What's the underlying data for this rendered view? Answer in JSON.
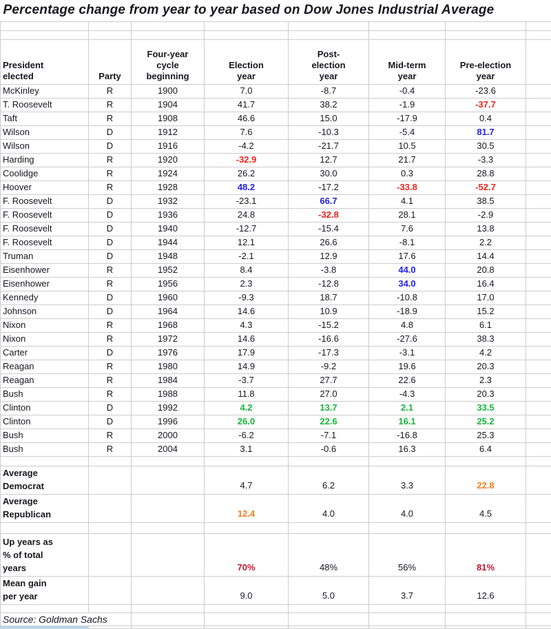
{
  "title": "Percentage change from year to year based on Dow Jones Industrial Average",
  "source": "Source: Goldman Sachs",
  "colors": {
    "text": "#17171f",
    "grid": "#cccccc",
    "red": "#f2241c",
    "blue": "#2222e6",
    "green": "#17b53a",
    "orange": "#f57e20",
    "darkred": "#bf1a2c",
    "selection": "#b8d8f2"
  },
  "table": {
    "headers": [
      "President\nelected",
      "Party",
      "Four-year\ncycle\nbeginning",
      "Election\nyear",
      "Post-\nelection\nyear",
      "Mid-term\nyear",
      "Pre-election\nyear"
    ],
    "rows": [
      {
        "name": "McKinley",
        "party": "R",
        "year": "1900",
        "values": [
          "7.0",
          "-8.7",
          "-0.4",
          "-23.6"
        ]
      },
      {
        "name": "T. Roosevelt",
        "party": "R",
        "year": "1904",
        "values": [
          "41.7",
          "38.2",
          "-1.9",
          "-37.7"
        ],
        "colors": [
          null,
          null,
          null,
          "red"
        ]
      },
      {
        "name": "Taft",
        "party": "R",
        "year": "1908",
        "values": [
          "46.6",
          "15.0",
          "-17.9",
          "0.4"
        ]
      },
      {
        "name": "Wilson",
        "party": "D",
        "year": "1912",
        "values": [
          "7.6",
          "-10.3",
          "-5.4",
          "81.7"
        ],
        "colors": [
          null,
          null,
          null,
          "blue"
        ]
      },
      {
        "name": "Wilson",
        "party": "D",
        "year": "1916",
        "values": [
          "-4.2",
          "-21.7",
          "10.5",
          "30.5"
        ]
      },
      {
        "name": "Harding",
        "party": "R",
        "year": "1920",
        "values": [
          "-32.9",
          "12.7",
          "21.7",
          "-3.3"
        ],
        "colors": [
          "red",
          null,
          null,
          null
        ]
      },
      {
        "name": "Coolidge",
        "party": "R",
        "year": "1924",
        "values": [
          "26.2",
          "30.0",
          "0.3",
          "28.8"
        ]
      },
      {
        "name": "Hoover",
        "party": "R",
        "year": "1928",
        "values": [
          "48.2",
          "-17.2",
          "-33.8",
          "-52.7"
        ],
        "colors": [
          "blue",
          null,
          "red",
          "red"
        ]
      },
      {
        "name": "F. Roosevelt",
        "party": "D",
        "year": "1932",
        "values": [
          "-23.1",
          "66.7",
          "4.1",
          "38.5"
        ],
        "colors": [
          null,
          "blue",
          null,
          null
        ]
      },
      {
        "name": "F. Roosevelt",
        "party": "D",
        "year": "1936",
        "values": [
          "24.8",
          "-32.8",
          "28.1",
          "-2.9"
        ],
        "colors": [
          null,
          "red",
          null,
          null
        ]
      },
      {
        "name": "F. Roosevelt",
        "party": "D",
        "year": "1940",
        "values": [
          "-12.7",
          "-15.4",
          "7.6",
          "13.8"
        ]
      },
      {
        "name": "F. Roosevelt",
        "party": "D",
        "year": "1944",
        "values": [
          "12.1",
          "26.6",
          "-8.1",
          "2.2"
        ]
      },
      {
        "name": "Truman",
        "party": "D",
        "year": "1948",
        "values": [
          "-2.1",
          "12.9",
          "17.6",
          "14.4"
        ]
      },
      {
        "name": "Eisenhower",
        "party": "R",
        "year": "1952",
        "values": [
          "8.4",
          "-3.8",
          "44.0",
          "20.8"
        ],
        "colors": [
          null,
          null,
          "blue",
          null
        ]
      },
      {
        "name": "Eisenhower",
        "party": "R",
        "year": "1956",
        "values": [
          "2.3",
          "-12.8",
          "34.0",
          "16.4"
        ],
        "colors": [
          null,
          null,
          "blue",
          null
        ]
      },
      {
        "name": "Kennedy",
        "party": "D",
        "year": "1960",
        "values": [
          "-9.3",
          "18.7",
          "-10.8",
          "17.0"
        ]
      },
      {
        "name": "Johnson",
        "party": "D",
        "year": "1964",
        "values": [
          "14.6",
          "10.9",
          "-18.9",
          "15.2"
        ]
      },
      {
        "name": "Nixon",
        "party": "R",
        "year": "1968",
        "values": [
          "4.3",
          "-15.2",
          "4.8",
          "6.1"
        ]
      },
      {
        "name": "Nixon",
        "party": "R",
        "year": "1972",
        "values": [
          "14.6",
          "-16.6",
          "-27.6",
          "38.3"
        ]
      },
      {
        "name": "Carter",
        "party": "D",
        "year": "1976",
        "values": [
          "17.9",
          "-17.3",
          "-3.1",
          "4.2"
        ]
      },
      {
        "name": "Reagan",
        "party": "R",
        "year": "1980",
        "values": [
          "14.9",
          "-9.2",
          "19.6",
          "20.3"
        ]
      },
      {
        "name": "Reagan",
        "party": "R",
        "year": "1984",
        "values": [
          "-3.7",
          "27.7",
          "22.6",
          "2.3"
        ]
      },
      {
        "name": "Bush",
        "party": "R",
        "year": "1988",
        "values": [
          "11.8",
          "27.0",
          "-4.3",
          "20.3"
        ]
      },
      {
        "name": "Clinton",
        "party": "D",
        "year": "1992",
        "values": [
          "4.2",
          "13.7",
          "2.1",
          "33.5"
        ],
        "colors": [
          "green",
          "green",
          "green",
          "green"
        ]
      },
      {
        "name": "Clinton",
        "party": "D",
        "year": "1996",
        "values": [
          "26.0",
          "22.6",
          "16.1",
          "25.2"
        ],
        "colors": [
          "green",
          "green",
          "green",
          "green"
        ]
      },
      {
        "name": "Bush",
        "party": "R",
        "year": "2000",
        "values": [
          "-6.2",
          "-7.1",
          "-16.8",
          "25.3"
        ]
      },
      {
        "name": "Bush",
        "party": "R",
        "year": "2004",
        "values": [
          "3.1",
          "-0.6",
          "16.3",
          "6.4"
        ]
      }
    ],
    "summary": [
      {
        "label": "Average\nDemocrat",
        "values": [
          "4.7",
          "6.2",
          "3.3",
          "22.8"
        ],
        "colors": [
          null,
          null,
          null,
          "orange"
        ]
      },
      {
        "label": "Average\nRepublican",
        "values": [
          "12.4",
          "4.0",
          "4.0",
          "4.5"
        ],
        "colors": [
          "orange",
          null,
          null,
          null
        ]
      },
      {
        "label": "Up years as\n% of total\nyears",
        "values": [
          "70%",
          "48%",
          "56%",
          "81%"
        ],
        "colors": [
          "darkred",
          null,
          null,
          "darkred"
        ]
      },
      {
        "label": "Mean gain\nper year",
        "values": [
          "9.0",
          "5.0",
          "3.7",
          "12.6"
        ]
      }
    ]
  }
}
